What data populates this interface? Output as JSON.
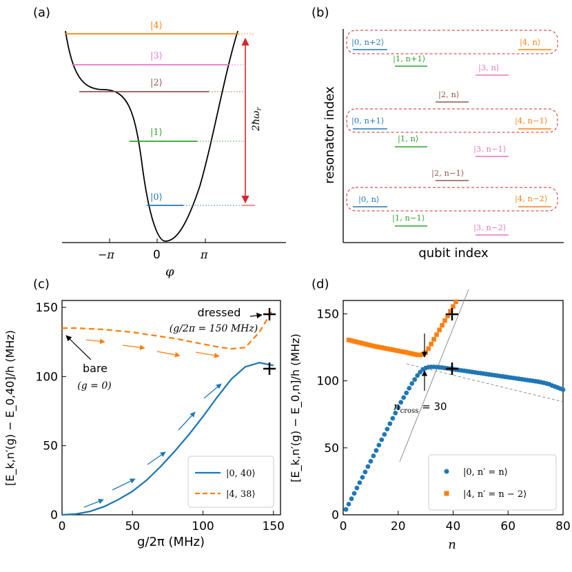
{
  "colors": {
    "blue": "#1f77b4",
    "green": "#2ca02c",
    "brown": "#8c564b",
    "pink": "#e377c2",
    "orange": "#ff7f0e",
    "red": "#d62728",
    "gray": "#808080"
  },
  "panel_a": {
    "label": "(a)",
    "levels": [
      "|0⟩",
      "|1⟩",
      "|2⟩",
      "|3⟩",
      "|4⟩"
    ],
    "xticks": [
      "−π",
      "0",
      "π"
    ],
    "xlabel": "φ",
    "arrow_label": "2ħω",
    "arrow_sub": "r"
  },
  "panel_b": {
    "label": "(b)",
    "xlabel": "qubit index",
    "ylabel": "resonator index",
    "row3": [
      "|0, n+2⟩",
      "|1, n+1⟩",
      "|3, n⟩",
      "|4, n⟩"
    ],
    "mid2": "|2, n⟩",
    "row2": [
      "|0, n+1⟩",
      "|1, n⟩",
      "|3, n−1⟩",
      "|4, n−1⟩"
    ],
    "mid1": "|2, n−1⟩",
    "row1": [
      "|0, n⟩",
      "|1, n−1⟩",
      "|3, n−2⟩",
      "|4, n−2⟩"
    ]
  },
  "panel_c": {
    "label": "(c)",
    "xlabel": "g/2π (MHz)",
    "ylabel": "[E_k,n′(g) − E_0,40]/h (MHz)",
    "xticks": [
      "0",
      "50",
      "100",
      "150"
    ],
    "yticks": [
      "0",
      "50",
      "100",
      "150"
    ],
    "annot_dressed": "dressed",
    "annot_dressed_g": "(g/2π = 150 MHz)",
    "annot_bare": "bare",
    "annot_bare_g": "(g = 0)",
    "legend": [
      "|0, 40⟩",
      "|4, 38⟩"
    ]
  },
  "panel_d": {
    "label": "(d)",
    "xlabel": "n",
    "ylabel": "[E_k,n′(g) − E_0,n]/h (MHz)",
    "xticks": [
      "0",
      "20",
      "40",
      "60",
      "80"
    ],
    "yticks": [
      "0",
      "50",
      "100",
      "150"
    ],
    "annot_cross": "n",
    "annot_cross_sub": "cross",
    "annot_cross_val": " = 30",
    "legend": [
      "|0, n′ = n⟩",
      "|4, n′ = n − 2⟩"
    ]
  },
  "chart_data": [
    {
      "type": "line",
      "title": "(c)",
      "xlabel": "g/2π (MHz)",
      "ylabel": "[E_k,n′(g) − E_0,40]/h (MHz)",
      "xlim": [
        0,
        155
      ],
      "ylim": [
        0,
        155
      ],
      "series": [
        {
          "name": "|0, 40⟩",
          "color": "#1f77b4",
          "style": "solid",
          "x": [
            0,
            10,
            20,
            30,
            40,
            50,
            60,
            70,
            80,
            90,
            100,
            110,
            120,
            130,
            140,
            150
          ],
          "y": [
            0,
            0.6,
            2.5,
            6,
            11,
            17,
            25,
            35,
            46,
            58,
            71,
            85,
            98,
            107,
            110,
            108
          ]
        },
        {
          "name": "|4, 38⟩",
          "color": "#ff7f0e",
          "style": "dashed",
          "x": [
            0,
            10,
            20,
            30,
            40,
            50,
            60,
            70,
            80,
            90,
            100,
            110,
            120,
            130,
            140,
            150
          ],
          "y": [
            135,
            135,
            134.5,
            134,
            133,
            132,
            130.5,
            129,
            127.5,
            125.5,
            123.5,
            121.5,
            120,
            121,
            132,
            149
          ]
        }
      ]
    },
    {
      "type": "scatter",
      "title": "(d)",
      "xlabel": "n",
      "ylabel": "[E_k,n′(g) − E_0,n]/h (MHz)",
      "xlim": [
        0,
        80
      ],
      "ylim": [
        0,
        160
      ],
      "series": [
        {
          "name": "|0, n′ = n⟩",
          "color": "#1f77b4",
          "marker": "circle",
          "x": [
            1,
            2,
            3,
            4,
            5,
            6,
            7,
            8,
            9,
            10,
            11,
            12,
            13,
            14,
            15,
            16,
            17,
            18,
            19,
            20,
            21,
            22,
            23,
            24,
            25,
            26,
            27,
            28,
            29,
            30,
            31,
            32,
            33,
            34,
            35,
            36,
            37,
            38,
            39,
            40,
            41,
            42,
            43,
            44,
            45,
            46,
            47,
            48,
            49,
            50,
            51,
            52,
            53,
            54,
            55,
            56,
            57,
            58,
            59,
            60,
            61,
            62,
            63,
            64,
            65,
            66,
            67,
            68,
            69,
            70,
            71,
            72,
            73,
            74,
            75,
            76,
            77,
            78,
            79,
            80
          ],
          "y": [
            4,
            8,
            12,
            16,
            20,
            24,
            28,
            32,
            36,
            40,
            44,
            48,
            52,
            56,
            60,
            64,
            68,
            72,
            76,
            80,
            84,
            87.5,
            91,
            94.5,
            98,
            101,
            104,
            106.5,
            108.5,
            109.6,
            110.2,
            110.4,
            110.4,
            110.3,
            110.1,
            109.9,
            109.6,
            109.3,
            109,
            108.7,
            108.4,
            108.1,
            107.8,
            107.5,
            107.2,
            106.9,
            106.6,
            106.3,
            106,
            105.7,
            105.4,
            105.1,
            104.8,
            104.5,
            104.2,
            103.9,
            103.6,
            103.3,
            103,
            102.7,
            102.4,
            102.1,
            101.8,
            101.5,
            101.2,
            100.9,
            100.6,
            100.3,
            100,
            99.7,
            99.4,
            99,
            98.5,
            98,
            97.5,
            96.5,
            95.8,
            95,
            94.2,
            93.4
          ]
        },
        {
          "name": "|4, n′ = n − 2⟩",
          "color": "#ff7f0e",
          "marker": "square",
          "x": [
            2,
            3,
            4,
            5,
            6,
            7,
            8,
            9,
            10,
            11,
            12,
            13,
            14,
            15,
            16,
            17,
            18,
            19,
            20,
            21,
            22,
            23,
            24,
            25,
            26,
            27,
            28,
            29,
            30,
            31,
            32,
            33,
            34,
            35,
            36,
            37,
            38,
            39,
            40,
            41,
            42
          ],
          "y": [
            130.5,
            130,
            129.5,
            129,
            128.5,
            128,
            127.5,
            127,
            126.5,
            126,
            125.6,
            125.2,
            124.8,
            124.4,
            124,
            123.6,
            123.2,
            122.8,
            122.4,
            122,
            121.6,
            121.2,
            120.7,
            120.3,
            119.8,
            119.4,
            119.3,
            119.8,
            121,
            124,
            127.5,
            131,
            134.5,
            138,
            141.5,
            145,
            148.5,
            152,
            155.5,
            159,
            162.5
          ]
        }
      ],
      "markers_cross": [
        [
          40,
          108.7
        ],
        [
          40,
          149
        ]
      ],
      "guide_lines": "asymptotes crossing near n = 30"
    }
  ]
}
